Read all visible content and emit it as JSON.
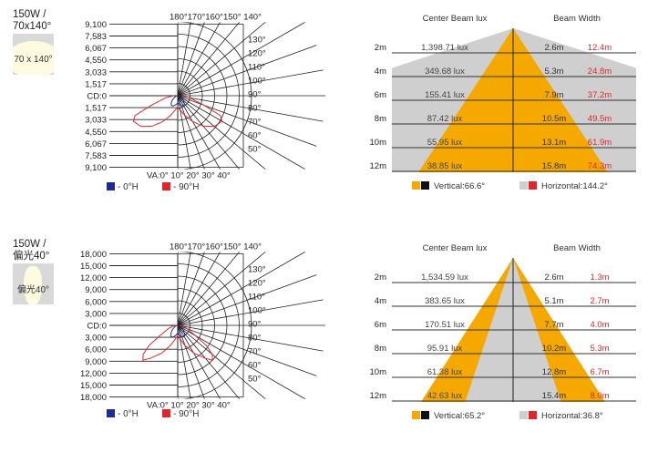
{
  "panels": [
    {
      "title_line1": "150W /",
      "title_line2": "70x140°",
      "thumb_label": "70 x 140°",
      "chart_data": [
        {
          "type": "polar",
          "cd_ticks": [
            "9,100",
            "7,583",
            "6,067",
            "4,550",
            "3,033",
            "1,517",
            "CD:0",
            "1,517",
            "3,033",
            "4,550",
            "6,067",
            "7,583",
            "9,100"
          ],
          "top_angle_labels": "180°170°160°150° 140°",
          "side_angle_labels": [
            "130°",
            "120°",
            "110°",
            "100°",
            "90°",
            "80°",
            "70°",
            "60°",
            "50°"
          ],
          "bottom_angle_labels": "VA:0° 10° 20° 30° 40°",
          "max_cd": 9100,
          "legend": [
            {
              "label": "- 0°H",
              "color": "#1f2a9a"
            },
            {
              "label": "- 90°H",
              "color": "#e0262b"
            }
          ],
          "series": [
            {
              "name": "- 0°H",
              "color": "#1f2a9a",
              "points": [
                [
                  0,
                  900
                ],
                [
                  10,
                  1100
                ],
                [
                  20,
                  1300
                ],
                [
                  30,
                  1450
                ],
                [
                  40,
                  1300
                ],
                [
                  50,
                  900
                ],
                [
                  60,
                  500
                ],
                [
                  70,
                  300
                ],
                [
                  80,
                  180
                ],
                [
                  90,
                  80
                ]
              ]
            },
            {
              "name": "- 90°H",
              "color": "#e0262b",
              "points": [
                [
                  0,
                  1400
                ],
                [
                  10,
                  1800
                ],
                [
                  20,
                  2600
                ],
                [
                  30,
                  3700
                ],
                [
                  40,
                  4900
                ],
                [
                  50,
                  5900
                ],
                [
                  60,
                  6300
                ],
                [
                  65,
                  5800
                ],
                [
                  70,
                  3500
                ],
                [
                  80,
                  1500
                ],
                [
                  90,
                  500
                ]
              ]
            }
          ]
        },
        {
          "type": "beam",
          "col_headers": [
            "Center Beam lux",
            "Beam Width"
          ],
          "rows": [
            {
              "distance": "2m",
              "lux": "1,398.71 lux",
              "vertical_width": "2.6m",
              "horizontal_width": "12.4m"
            },
            {
              "distance": "4m",
              "lux": "349.68 lux",
              "vertical_width": "5.3m",
              "horizontal_width": "24.8m"
            },
            {
              "distance": "6m",
              "lux": "155.41 lux",
              "vertical_width": "7.9m",
              "horizontal_width": "37.2m"
            },
            {
              "distance": "8m",
              "lux": "87.42 lux",
              "vertical_width": "10.5m",
              "horizontal_width": "49.5m"
            },
            {
              "distance": "10m",
              "lux": "55.95 lux",
              "vertical_width": "13.1m",
              "horizontal_width": "61.9m"
            },
            {
              "distance": "12m",
              "lux": "38.85 lux",
              "vertical_width": "15.8m",
              "horizontal_width": "74.3m"
            }
          ],
          "vertical_angle_deg": 66.6,
          "horizontal_angle_deg": 144.2,
          "legend_vertical": "Vertical:66.6°",
          "legend_horizontal": "Horizontal:144.2°",
          "vertical_color": "#f5a800",
          "horizontal_color": "#cfcfcf"
        }
      ]
    },
    {
      "title_line1": "150W /",
      "title_line2": "偏光40°",
      "thumb_label": "偏光40°",
      "chart_data": [
        {
          "type": "polar",
          "cd_ticks": [
            "18,000",
            "15,000",
            "12,000",
            "9,000",
            "6,000",
            "3,000",
            "CD:0",
            "3,000",
            "6,000",
            "9,000",
            "12,000",
            "15,000",
            "18,000"
          ],
          "top_angle_labels": "180°170°160°150° 140°",
          "side_angle_labels": [
            "130°",
            "120°",
            "110°",
            "100°",
            "90°",
            "80°",
            "70°",
            "60°",
            "50°"
          ],
          "bottom_angle_labels": "VA:0° 10° 20° 30° 40°",
          "max_cd": 18000,
          "legend": [
            {
              "label": "- 0°H",
              "color": "#1f2a9a"
            },
            {
              "label": "- 90°H",
              "color": "#e0262b"
            }
          ],
          "series": [
            {
              "name": "- 0°H",
              "color": "#1f2a9a",
              "points": [
                [
                  0,
                  1900
                ],
                [
                  10,
                  2400
                ],
                [
                  20,
                  3000
                ],
                [
                  30,
                  3200
                ],
                [
                  40,
                  2600
                ],
                [
                  50,
                  1800
                ],
                [
                  60,
                  1000
                ],
                [
                  70,
                  600
                ],
                [
                  80,
                  300
                ],
                [
                  90,
                  100
                ]
              ]
            },
            {
              "name": "- 90°H",
              "color": "#e0262b",
              "points": [
                [
                  0,
                  2500
                ],
                [
                  10,
                  3400
                ],
                [
                  20,
                  5200
                ],
                [
                  30,
                  7800
                ],
                [
                  40,
                  10500
                ],
                [
                  45,
                  12000
                ],
                [
                  50,
                  11000
                ],
                [
                  55,
                  8500
                ],
                [
                  60,
                  5000
                ],
                [
                  70,
                  2500
                ],
                [
                  80,
                  1300
                ],
                [
                  90,
                  400
                ]
              ]
            }
          ]
        },
        {
          "type": "beam",
          "col_headers": [
            "Center Beam lux",
            "Beam Width"
          ],
          "rows": [
            {
              "distance": "2m",
              "lux": "1,534.59 lux",
              "vertical_width": "2.6m",
              "horizontal_width": "1.3m"
            },
            {
              "distance": "4m",
              "lux": "383.65 lux",
              "vertical_width": "5.1m",
              "horizontal_width": "2.7m"
            },
            {
              "distance": "6m",
              "lux": "170.51 lux",
              "vertical_width": "7.7m",
              "horizontal_width": "4.0m"
            },
            {
              "distance": "8m",
              "lux": "95.91 lux",
              "vertical_width": "10.2m",
              "horizontal_width": "5.3m"
            },
            {
              "distance": "10m",
              "lux": "61.38 lux",
              "vertical_width": "12.8m",
              "horizontal_width": "6.7m"
            },
            {
              "distance": "12m",
              "lux": "42.63 lux",
              "vertical_width": "15.4m",
              "horizontal_width": "8.0m"
            }
          ],
          "vertical_angle_deg": 65.2,
          "horizontal_angle_deg": 36.8,
          "legend_vertical": "Vertical:65.2°",
          "legend_horizontal": "Horizontal:36.8°",
          "vertical_color": "#f5a800",
          "horizontal_color": "#cfcfcf"
        }
      ]
    }
  ]
}
